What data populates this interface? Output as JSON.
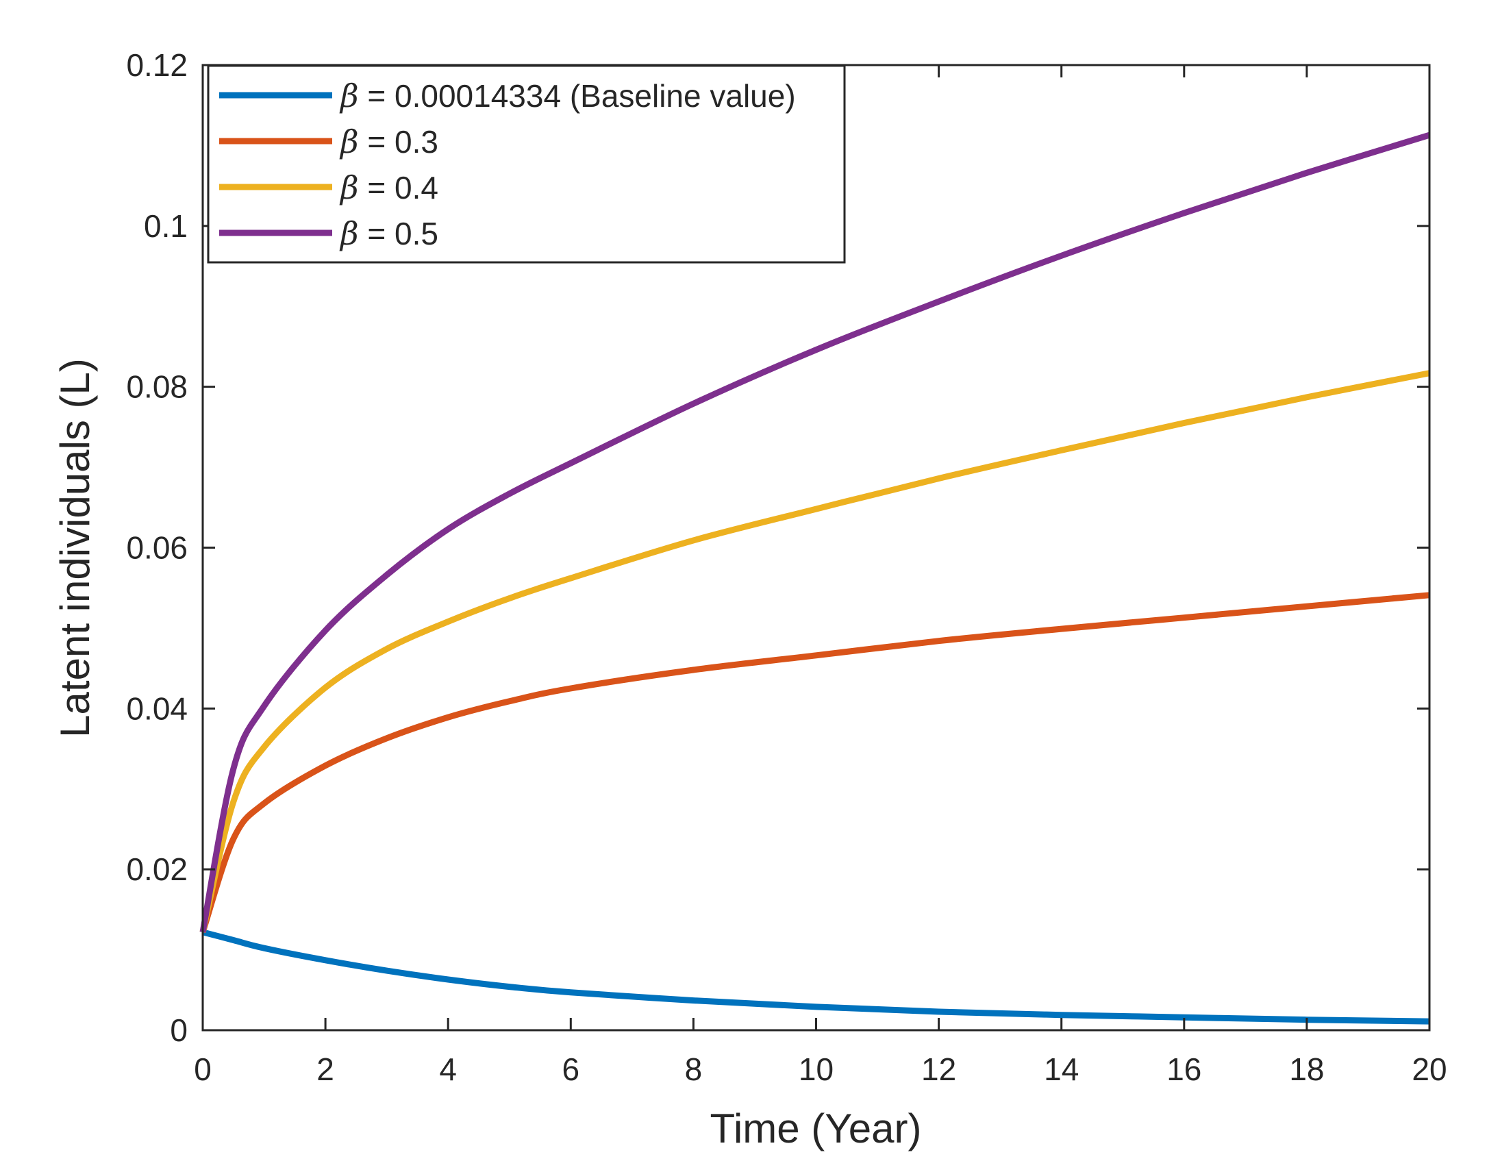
{
  "chart_data": {
    "type": "line",
    "title": "",
    "xlabel": "Time (Year)",
    "ylabel": "Latent individuals (L)",
    "xlim": [
      0,
      20
    ],
    "ylim": [
      0,
      0.12
    ],
    "xticks": [
      0,
      2,
      4,
      6,
      8,
      10,
      12,
      14,
      16,
      18,
      20
    ],
    "yticks": [
      0,
      0.02,
      0.04,
      0.06,
      0.08,
      0.1,
      0.12
    ],
    "xtick_labels": [
      "0",
      "2",
      "4",
      "6",
      "8",
      "10",
      "12",
      "14",
      "16",
      "18",
      "20"
    ],
    "ytick_labels": [
      "0",
      "0.02",
      "0.04",
      "0.06",
      "0.08",
      "0.1",
      "0.12"
    ],
    "grid": false,
    "legend_position": "top-left",
    "x": [
      0,
      0.5,
      1,
      2,
      3,
      4,
      5,
      6,
      8,
      10,
      12,
      14,
      16,
      18,
      20
    ],
    "series": [
      {
        "name": "β = 0.00014334 (Baseline value)",
        "symbol": "β",
        "value_text": " = 0.00014334 (Baseline value)",
        "color": "#0072BD",
        "values": [
          0.0122,
          0.0112,
          0.0102,
          0.0087,
          0.0074,
          0.0063,
          0.0054,
          0.0047,
          0.0037,
          0.0029,
          0.0023,
          0.0019,
          0.0016,
          0.0013,
          0.0011
        ]
      },
      {
        "name": "β = 0.3",
        "symbol": "β",
        "value_text": " = 0.3",
        "color": "#D95319",
        "values": [
          0.0122,
          0.0238,
          0.0282,
          0.0329,
          0.0363,
          0.0389,
          0.0409,
          0.0425,
          0.0448,
          0.0466,
          0.0484,
          0.0499,
          0.0513,
          0.0527,
          0.0541
        ]
      },
      {
        "name": "β = 0.4",
        "symbol": "β",
        "value_text": " = 0.4",
        "color": "#EDB120",
        "values": [
          0.0122,
          0.0284,
          0.0352,
          0.0426,
          0.0474,
          0.0508,
          0.0537,
          0.0562,
          0.0609,
          0.0648,
          0.0686,
          0.0721,
          0.0755,
          0.0787,
          0.0817
        ]
      },
      {
        "name": "β = 0.5",
        "symbol": "β",
        "value_text": " = 0.5",
        "color": "#7E2F8E",
        "values": [
          0.0122,
          0.0325,
          0.0403,
          0.0497,
          0.0566,
          0.0623,
          0.0667,
          0.0705,
          0.0779,
          0.0846,
          0.0906,
          0.0963,
          0.1016,
          0.1066,
          0.1113
        ]
      }
    ]
  }
}
